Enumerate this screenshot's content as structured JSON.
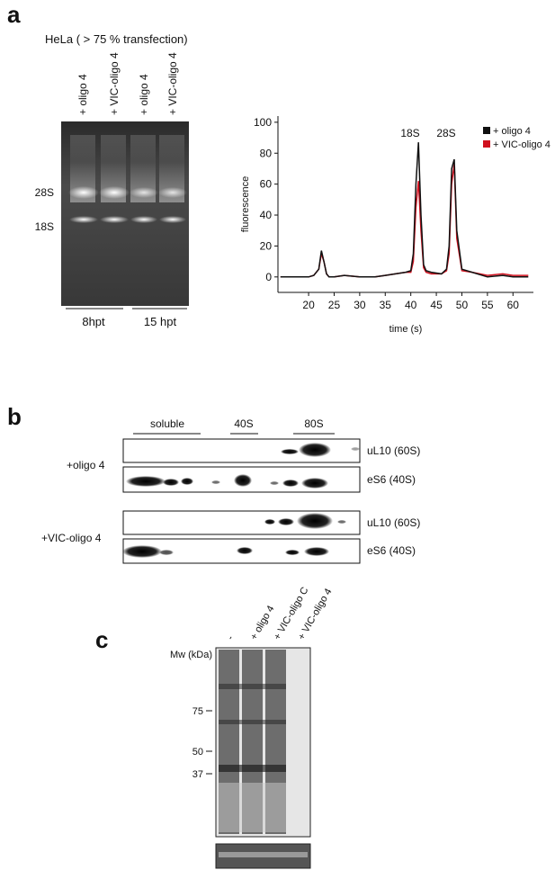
{
  "panel_a": {
    "label": "a",
    "gel_title": "HeLa ( > 75 % transfection)",
    "lanes": [
      "+ oligo 4",
      "+ VIC-oligo 4",
      "+ oligo 4",
      "+ VIC-oligo 4"
    ],
    "bands": [
      "28S",
      "18S"
    ],
    "groups": [
      "8hpt",
      "15 hpt"
    ]
  },
  "chart_data": {
    "type": "line",
    "xlabel": "time (s)",
    "ylabel": "fluorescence",
    "annotations": [
      "18S",
      "28S"
    ],
    "legend": "upper right",
    "x": [
      14.5,
      16,
      18,
      20,
      21,
      22,
      22.5,
      23,
      23.5,
      24,
      25,
      27,
      30,
      33,
      35,
      37,
      39,
      40,
      40.5,
      41,
      41.5,
      42,
      42.5,
      43,
      44,
      46,
      47,
      47.5,
      48,
      48.5,
      49,
      50,
      52,
      55,
      58,
      60,
      63
    ],
    "series": [
      {
        "name": "+ oligo 4",
        "color": "#111111",
        "values": [
          0,
          0,
          0,
          0,
          1,
          5,
          17,
          10,
          2,
          0,
          0,
          1,
          0,
          0,
          1,
          2,
          3,
          4,
          15,
          60,
          87,
          40,
          8,
          4,
          3,
          2,
          5,
          20,
          70,
          76,
          30,
          5,
          3,
          0,
          1,
          0,
          0
        ]
      },
      {
        "name": "+ VIC-oligo 4",
        "color": "#d0101e",
        "values": [
          0,
          0,
          0,
          0,
          1,
          5,
          15,
          10,
          2,
          0,
          0,
          1,
          0,
          0,
          1,
          2,
          3,
          3,
          10,
          45,
          62,
          30,
          6,
          3,
          2,
          2,
          4,
          15,
          60,
          73,
          25,
          4,
          3,
          1,
          2,
          1,
          1
        ]
      }
    ],
    "xlim": [
      14,
      64
    ],
    "ylim": [
      -10,
      104
    ],
    "xticks": [
      20,
      25,
      30,
      35,
      40,
      45,
      50,
      55,
      60
    ],
    "yticks": [
      0,
      20,
      40,
      60,
      80,
      100
    ]
  },
  "panel_b": {
    "label": "b",
    "fractions": [
      "soluble",
      "40S",
      "80S"
    ],
    "conditions": [
      "+oligo 4",
      "+VIC-oligo 4"
    ],
    "blots": [
      "uL10 (60S)",
      "eS6 (40S)",
      "uL10 (60S)",
      "eS6 (40S)"
    ]
  },
  "panel_c": {
    "label": "c",
    "mw_label": "Mw (kDa)",
    "lanes": [
      "-",
      "+ oligo 4",
      "+ VIC-oligo C",
      "+ VIC-oligo 4"
    ],
    "markers": [
      "75",
      "50",
      "37"
    ]
  }
}
